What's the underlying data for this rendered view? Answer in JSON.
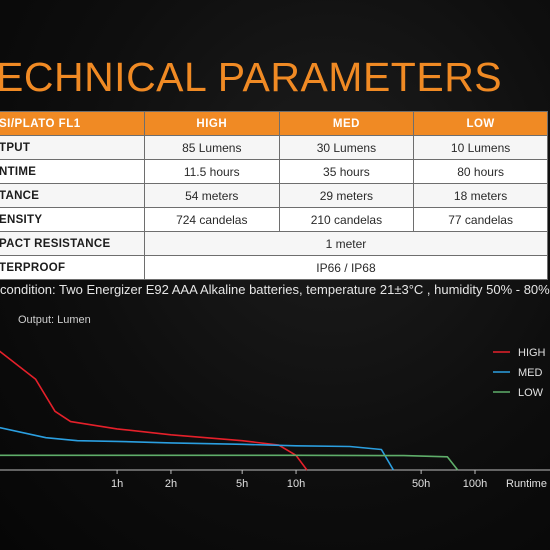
{
  "title": "ECHNICAL PARAMETERS",
  "table": {
    "header": [
      "SI/PLATO FL1",
      "HIGH",
      "MED",
      "LOW"
    ],
    "rows": [
      {
        "label": "TPUT",
        "cells": [
          "85 Lumens",
          "30 Lumens",
          "10 Lumens"
        ]
      },
      {
        "label": "NTIME",
        "cells": [
          "11.5 hours",
          "35 hours",
          "80 hours"
        ]
      },
      {
        "label": "TANCE",
        "cells": [
          "54 meters",
          "29 meters",
          "18 meters"
        ]
      },
      {
        "label": "ENSITY",
        "cells": [
          "724 candelas",
          "210 candelas",
          "77 candelas"
        ]
      },
      {
        "label": "PACT RESISTANCE",
        "cells": [
          "1 meter"
        ]
      },
      {
        "label": "TERPROOF",
        "cells": [
          "IP66 / IP68"
        ]
      }
    ]
  },
  "note": "condition: Two Energizer E92 AAA Alkaline batteries, temperature 21±3°C , humidity 50% - 80%.",
  "colors": {
    "accent": "#f08a24",
    "high": "#e5202a",
    "med": "#2b9fe0",
    "low": "#5fae6a"
  },
  "chart_data": {
    "type": "line",
    "ylabel": "Output: Lumen",
    "xlabel": "Runtime",
    "x_scale": "log",
    "x_ticks": [
      "1h",
      "2h",
      "5h",
      "10h",
      "50h",
      "100h"
    ],
    "legend_position": "top-right",
    "series": [
      {
        "name": "HIGH",
        "color": "#e5202a",
        "points": [
          [
            0.2,
            85
          ],
          [
            0.35,
            62
          ],
          [
            0.45,
            40
          ],
          [
            0.55,
            33
          ],
          [
            1,
            28
          ],
          [
            2,
            24
          ],
          [
            5,
            20
          ],
          [
            8,
            17
          ],
          [
            10,
            10
          ],
          [
            11.5,
            0
          ]
        ]
      },
      {
        "name": "MED",
        "color": "#2b9fe0",
        "points": [
          [
            0.2,
            30
          ],
          [
            0.4,
            22
          ],
          [
            0.6,
            20
          ],
          [
            1,
            19.5
          ],
          [
            2,
            18.5
          ],
          [
            5,
            17.5
          ],
          [
            10,
            16.5
          ],
          [
            20,
            16
          ],
          [
            30,
            14
          ],
          [
            35,
            0
          ]
        ]
      },
      {
        "name": "LOW",
        "color": "#5fae6a",
        "points": [
          [
            0.2,
            10
          ],
          [
            1,
            10
          ],
          [
            10,
            10
          ],
          [
            40,
            9.8
          ],
          [
            70,
            9
          ],
          [
            80,
            0
          ]
        ]
      }
    ]
  }
}
